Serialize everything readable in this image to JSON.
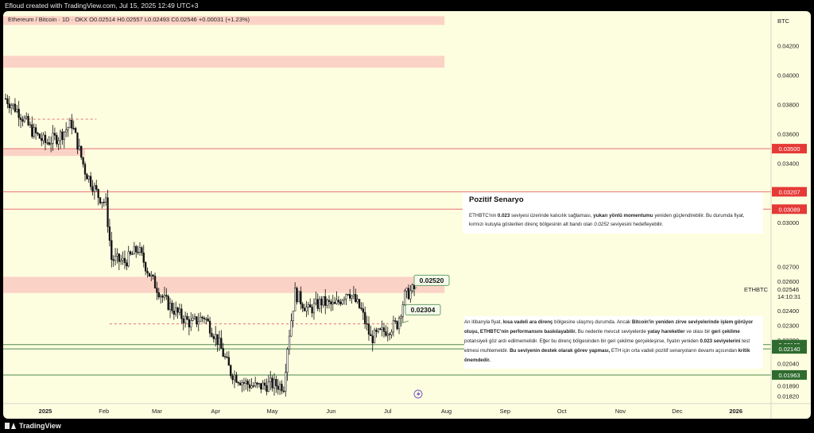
{
  "header": {
    "credit": "Efloud created with TradingView.com, Jul 15, 2025 12:49 UTC+3"
  },
  "legend": {
    "symbol": "Ethereum / Bitcoin · 1D · OKX",
    "open": "O0.02514",
    "high": "H0.02557",
    "low": "L0.02493",
    "close": "C0.02546",
    "change": "+0.00031 (+1.23%)"
  },
  "footer": {
    "brand": "TradingView"
  },
  "colors": {
    "background": "#fdfde0",
    "candle": "#111111",
    "zone": "#fbd3c6",
    "resistance_line": "#e57373",
    "support_line": "#4e8a4e",
    "resistance_tag": "#e53935",
    "support_tag": "#2e6b2e"
  },
  "annotations": {
    "positive_title": "Pozitif Senaryo",
    "positive_paragraph": [
      {
        "t": "ETHBTC'nin ",
        "b": false
      },
      {
        "t": "0.023",
        "b": true
      },
      {
        "t": " seviyesi üzerinde kalıcılık sağlaması, ",
        "b": false
      },
      {
        "t": "yukarı yönlü momentumu",
        "b": true
      },
      {
        "t": " yeniden güçlendirebilir. Bu durumda fiyat, kırmızı kutuyla gösterilen direnç bölgesinin alt bandı olan ",
        "b": false
      },
      {
        "t": "0.0252",
        "b": false,
        "i": true
      },
      {
        "t": " seviyesini hedefleyebilir.",
        "b": false
      }
    ],
    "current_paragraph": [
      {
        "t": "An itibarıyla fiyat, ",
        "b": false
      },
      {
        "t": "kısa vadeli ara direnç",
        "b": true
      },
      {
        "t": " bölgesine ulaşmış durumda. Ancak ",
        "b": false
      },
      {
        "t": "Bitcoin'in yeniden zirve seviyelerinde işlem görüyor oluşu, ETHBTC'nin performansını baskılayabilir.",
        "b": true
      },
      {
        "t": " Bu nedenle mevcut seviyelerde ",
        "b": false
      },
      {
        "t": "yatay hareketler",
        "b": true
      },
      {
        "t": " ve olası bir ",
        "b": false
      },
      {
        "t": "geri çekilme",
        "b": true
      },
      {
        "t": " potansiyeli göz ardı edilmemelidir. Eğer bu direnç bölgesinden bir geri çekilme gerçekleşirse, fiyatın yeniden ",
        "b": false
      },
      {
        "t": "0.023 seviyelerini",
        "b": true
      },
      {
        "t": " test etmesi muhtemeldir. ",
        "b": false
      },
      {
        "t": "Bu seviyenin destek olarak görev yapması,",
        "b": true
      },
      {
        "t": " ETH için orta vadeli pozitif senaryoların devamı açısından ",
        "b": false
      },
      {
        "t": "kritik önemdedir.",
        "b": true
      }
    ],
    "label_upper": "0.02520",
    "label_lower": "0.02304"
  },
  "chart_data": {
    "type": "candlestick",
    "title": "Ethereum / Bitcoin · 1D · OKX",
    "symbol": "ETHBTC",
    "y_axis_unit": "BTC",
    "ylim": [
      0.0179,
      0.0438
    ],
    "y_ticks": [
      "0.04200",
      "0.04000",
      "0.03800",
      "0.03600",
      "0.03400",
      "0.03000",
      "0.02700",
      "0.02600",
      "0.02400",
      "0.02300",
      "0.02200",
      "0.02040",
      "0.01890",
      "0.01820"
    ],
    "x_ticks": [
      "2025",
      "Feb",
      "Mar",
      "Apr",
      "May",
      "Jun",
      "Jul",
      "Aug",
      "Sep",
      "Oct",
      "Nov",
      "Dec",
      "2026"
    ],
    "x_tick_dates": [
      "2025-01-01",
      "2025-02-01",
      "2025-03-01",
      "2025-04-01",
      "2025-05-01",
      "2025-06-01",
      "2025-07-01",
      "2025-08-01",
      "2025-09-01",
      "2025-10-01",
      "2025-11-01",
      "2025-12-01",
      "2026-01-01"
    ],
    "current_price": {
      "value": 0.02546,
      "label": "0.02546",
      "symbol": "ETHBTC",
      "countdown": "14:10:31"
    },
    "resistance_levels": [
      {
        "value": 0.035,
        "label": "0.03500"
      },
      {
        "value": 0.03207,
        "label": "0.03207"
      },
      {
        "value": 0.03089,
        "label": "0.03089"
      }
    ],
    "support_levels": [
      {
        "value": 0.02169,
        "label": "0.02169"
      },
      {
        "value": 0.0214,
        "label": "0.02140"
      },
      {
        "value": 0.01963,
        "label": "0.01963"
      }
    ],
    "zones": [
      {
        "from": 0.0252,
        "to": 0.0263,
        "start": "2024-12-08",
        "end": "2025-07-31"
      },
      {
        "from": 0.0405,
        "to": 0.0413,
        "start": "2024-12-08",
        "end": "2025-07-31"
      },
      {
        "from": 0.0434,
        "to": 0.044,
        "start": "2024-12-08",
        "end": "2025-07-31"
      },
      {
        "from": 0.0345,
        "to": 0.035,
        "start": "2024-12-08",
        "end": "2025-01-22"
      }
    ],
    "dashed_levels": [
      {
        "value": 0.037,
        "start": "2024-12-18",
        "end": "2025-01-28"
      },
      {
        "value": 0.0231,
        "start": "2025-02-04",
        "end": "2025-07-05"
      }
    ],
    "closes": [
      {
        "date": "2024-12-11",
        "close": 0.0384
      },
      {
        "date": "2024-12-18",
        "close": 0.0375
      },
      {
        "date": "2024-12-25",
        "close": 0.0362
      },
      {
        "date": "2025-01-01",
        "close": 0.0354
      },
      {
        "date": "2025-01-08",
        "close": 0.0358
      },
      {
        "date": "2025-01-15",
        "close": 0.0367
      },
      {
        "date": "2025-01-22",
        "close": 0.0335
      },
      {
        "date": "2025-01-29",
        "close": 0.0318
      },
      {
        "date": "2025-02-02",
        "close": 0.0313
      },
      {
        "date": "2025-02-05",
        "close": 0.0275
      },
      {
        "date": "2025-02-12",
        "close": 0.0273
      },
      {
        "date": "2025-02-19",
        "close": 0.0282
      },
      {
        "date": "2025-02-26",
        "close": 0.0262
      },
      {
        "date": "2025-03-05",
        "close": 0.0247
      },
      {
        "date": "2025-03-12",
        "close": 0.0238
      },
      {
        "date": "2025-03-19",
        "close": 0.0231
      },
      {
        "date": "2025-03-26",
        "close": 0.0236
      },
      {
        "date": "2025-04-02",
        "close": 0.022
      },
      {
        "date": "2025-04-09",
        "close": 0.0198
      },
      {
        "date": "2025-04-16",
        "close": 0.0191
      },
      {
        "date": "2025-04-23",
        "close": 0.0188
      },
      {
        "date": "2025-04-30",
        "close": 0.019
      },
      {
        "date": "2025-05-07",
        "close": 0.0189
      },
      {
        "date": "2025-05-09",
        "close": 0.0216
      },
      {
        "date": "2025-05-13",
        "close": 0.0252
      },
      {
        "date": "2025-05-20",
        "close": 0.024
      },
      {
        "date": "2025-05-27",
        "close": 0.0246
      },
      {
        "date": "2025-06-03",
        "close": 0.0243
      },
      {
        "date": "2025-06-10",
        "close": 0.0254
      },
      {
        "date": "2025-06-17",
        "close": 0.024
      },
      {
        "date": "2025-06-22",
        "close": 0.0221
      },
      {
        "date": "2025-06-29",
        "close": 0.0226
      },
      {
        "date": "2025-07-06",
        "close": 0.0231
      },
      {
        "date": "2025-07-10",
        "close": 0.025
      },
      {
        "date": "2025-07-15",
        "close": 0.02546
      }
    ]
  }
}
